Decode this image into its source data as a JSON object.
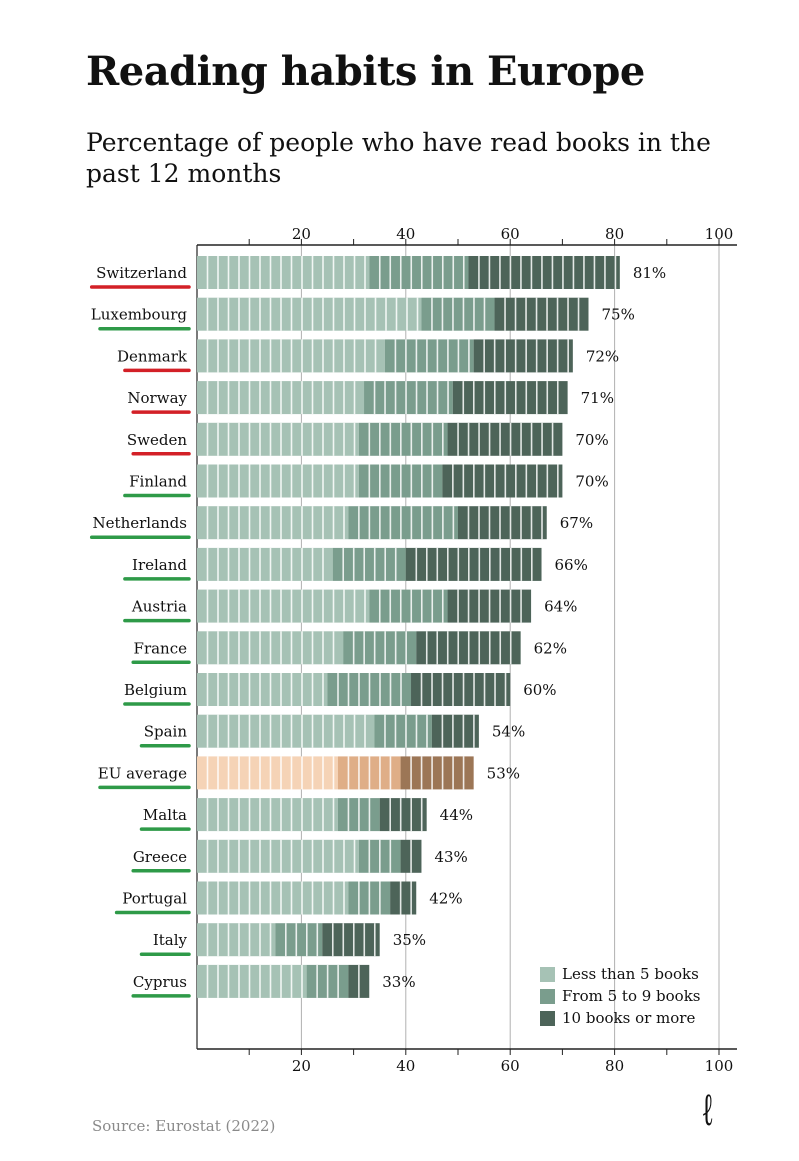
{
  "header": {
    "title": "Reading habits in Europe",
    "subtitle": "Percentage of people who have read books in the past 12 months"
  },
  "footer": {
    "source": "Source: Eurostat (2022)",
    "logo": "ℓ"
  },
  "colors": {
    "light": "#a6c2b5",
    "medium": "#7a9d8d",
    "dark": "#4d6459",
    "eu_light": "#f5d3b6",
    "eu_medium": "#dfae87",
    "eu_dark": "#9c7656",
    "underline_red": "#d32027",
    "underline_green": "#2e9a48",
    "gridline": "#b0b0b0",
    "axis": "#222222"
  },
  "chart_data": {
    "type": "bar",
    "orientation": "horizontal",
    "stacked": true,
    "title": "Reading habits in Europe",
    "subtitle": "Percentage of people who have read books in the past 12 months",
    "xlabel": "",
    "ylabel": "",
    "xlim": [
      0,
      100
    ],
    "xticks": [
      20,
      40,
      60,
      80,
      100
    ],
    "xticks_minor": [
      10,
      30,
      50,
      70,
      90
    ],
    "grid": true,
    "legend_position": "bottom-right",
    "legend": [
      "Less than 5 books",
      "From 5 to 9 books",
      "10 books or more"
    ],
    "categories": [
      "Switzerland",
      "Luxembourg",
      "Denmark",
      "Norway",
      "Sweden",
      "Finland",
      "Netherlands",
      "Ireland",
      "Austria",
      "France",
      "Belgium",
      "Spain",
      "EU average",
      "Malta",
      "Greece",
      "Portugal",
      "Italy",
      "Cyprus"
    ],
    "underline": [
      "red",
      "green",
      "red",
      "red",
      "red",
      "green",
      "green",
      "green",
      "green",
      "green",
      "green",
      "green",
      "green",
      "green",
      "green",
      "green",
      "green",
      "green"
    ],
    "totals": [
      81,
      75,
      72,
      71,
      70,
      70,
      67,
      66,
      64,
      62,
      60,
      54,
      53,
      44,
      43,
      42,
      35,
      33
    ],
    "total_labels": [
      "81%",
      "75%",
      "72%",
      "71%",
      "70%",
      "70%",
      "67%",
      "66%",
      "64%",
      "62%",
      "60%",
      "54%",
      "53%",
      "44%",
      "43%",
      "42%",
      "35%",
      "33%"
    ],
    "highlight": "EU average",
    "series": [
      {
        "name": "Less than 5 books",
        "values": [
          33,
          43,
          36,
          32,
          31,
          31,
          29,
          26,
          33,
          28,
          25,
          34,
          27,
          27,
          31,
          29,
          15,
          21
        ]
      },
      {
        "name": "From 5 to 9 books",
        "values": [
          19,
          14,
          17,
          17,
          17,
          16,
          21,
          14,
          15,
          14,
          16,
          11,
          12,
          8,
          8,
          8,
          9,
          8
        ]
      },
      {
        "name": "10 books or more",
        "values": [
          29,
          18,
          19,
          22,
          22,
          23,
          17,
          26,
          16,
          20,
          19,
          9,
          14,
          9,
          4,
          5,
          11,
          4
        ]
      }
    ]
  }
}
